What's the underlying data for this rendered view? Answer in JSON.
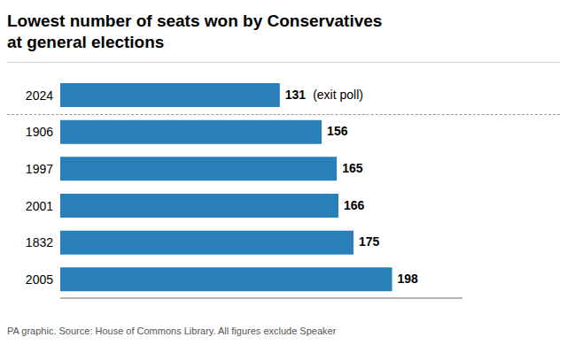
{
  "chart_data": {
    "type": "bar",
    "orientation": "horizontal",
    "title": "Lowest number of seats won by Conservatives",
    "subtitle": "at general elections",
    "categories": [
      "2024",
      "1906",
      "1997",
      "2001",
      "1832",
      "2005"
    ],
    "values": [
      131,
      156,
      165,
      166,
      175,
      198
    ],
    "color": "#2980b9",
    "xlim": [
      0,
      240
    ],
    "data_labels": true,
    "tick_labels": "y",
    "grid": false,
    "annotations": [
      {
        "category": "2024",
        "text": "(exit poll)"
      },
      {
        "text": "PA graphic. Source: House of Commons Library. All figures exclude Speaker"
      }
    ]
  }
}
